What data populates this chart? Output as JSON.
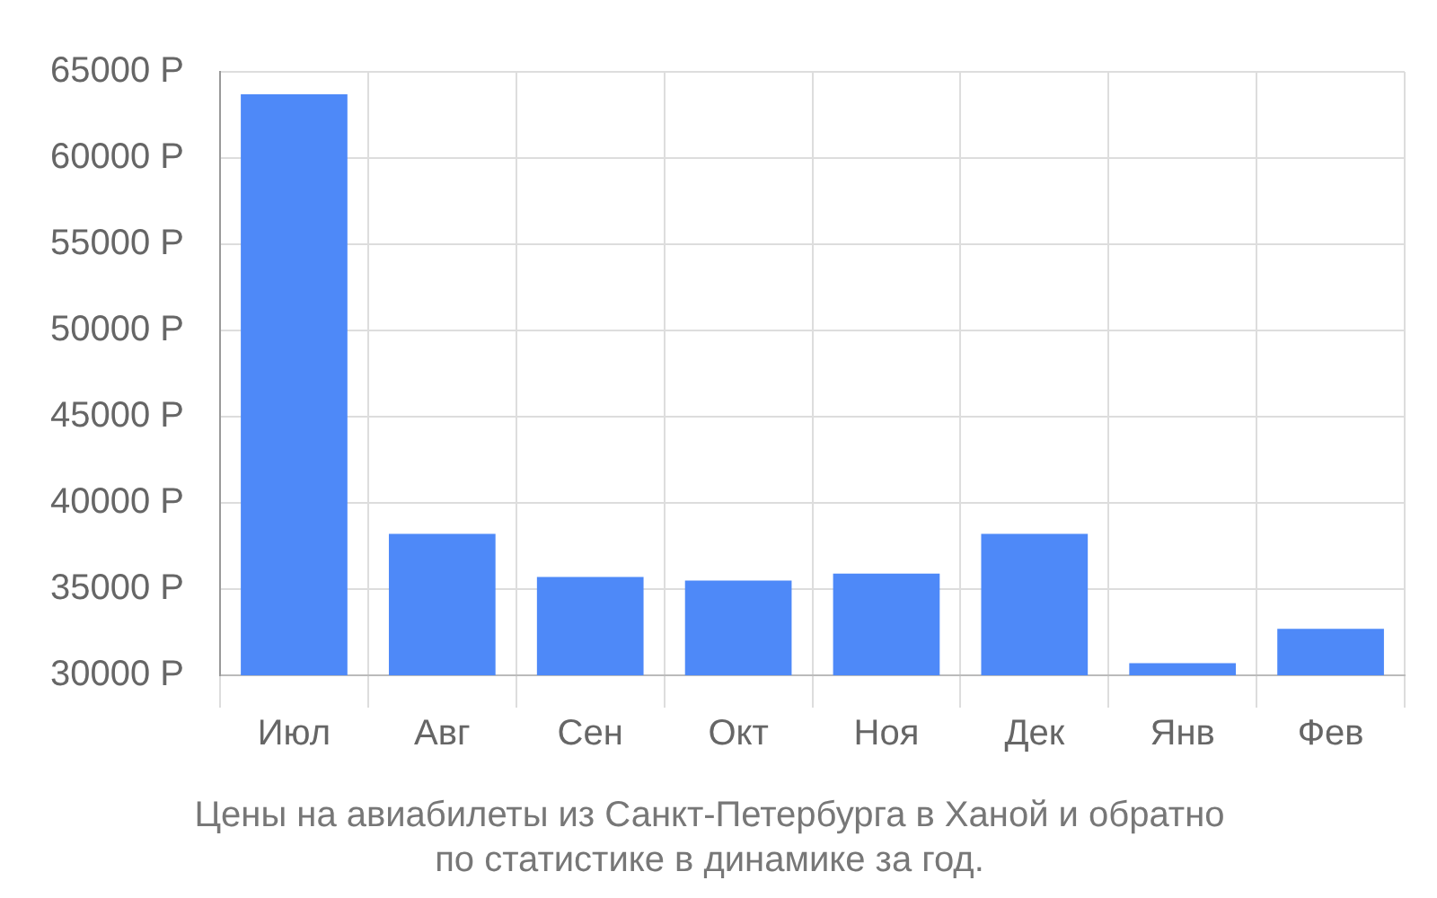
{
  "chart_data": {
    "type": "bar",
    "categories": [
      "Июл",
      "Авг",
      "Сен",
      "Окт",
      "Ноя",
      "Дек",
      "Янв",
      "Фев"
    ],
    "values": [
      63700,
      38200,
      35700,
      35500,
      35900,
      38200,
      30700,
      32700
    ],
    "color": "#4e89f8",
    "ylim": [
      30000,
      65000
    ],
    "yticks": [
      {
        "value": 30000,
        "label": "30000 Р"
      },
      {
        "value": 35000,
        "label": "35000 Р"
      },
      {
        "value": 40000,
        "label": "40000 Р"
      },
      {
        "value": 45000,
        "label": "45000 Р"
      },
      {
        "value": 50000,
        "label": "50000 Р"
      },
      {
        "value": 55000,
        "label": "55000 Р"
      },
      {
        "value": 60000,
        "label": "60000 Р"
      },
      {
        "value": 65000,
        "label": "65000 Р"
      }
    ],
    "grid": true,
    "legend": false,
    "annotations": [
      "Цены на авиабилеты из Санкт-Петербурга в Ханой и обратно",
      "по статистике в динамике за год."
    ]
  }
}
